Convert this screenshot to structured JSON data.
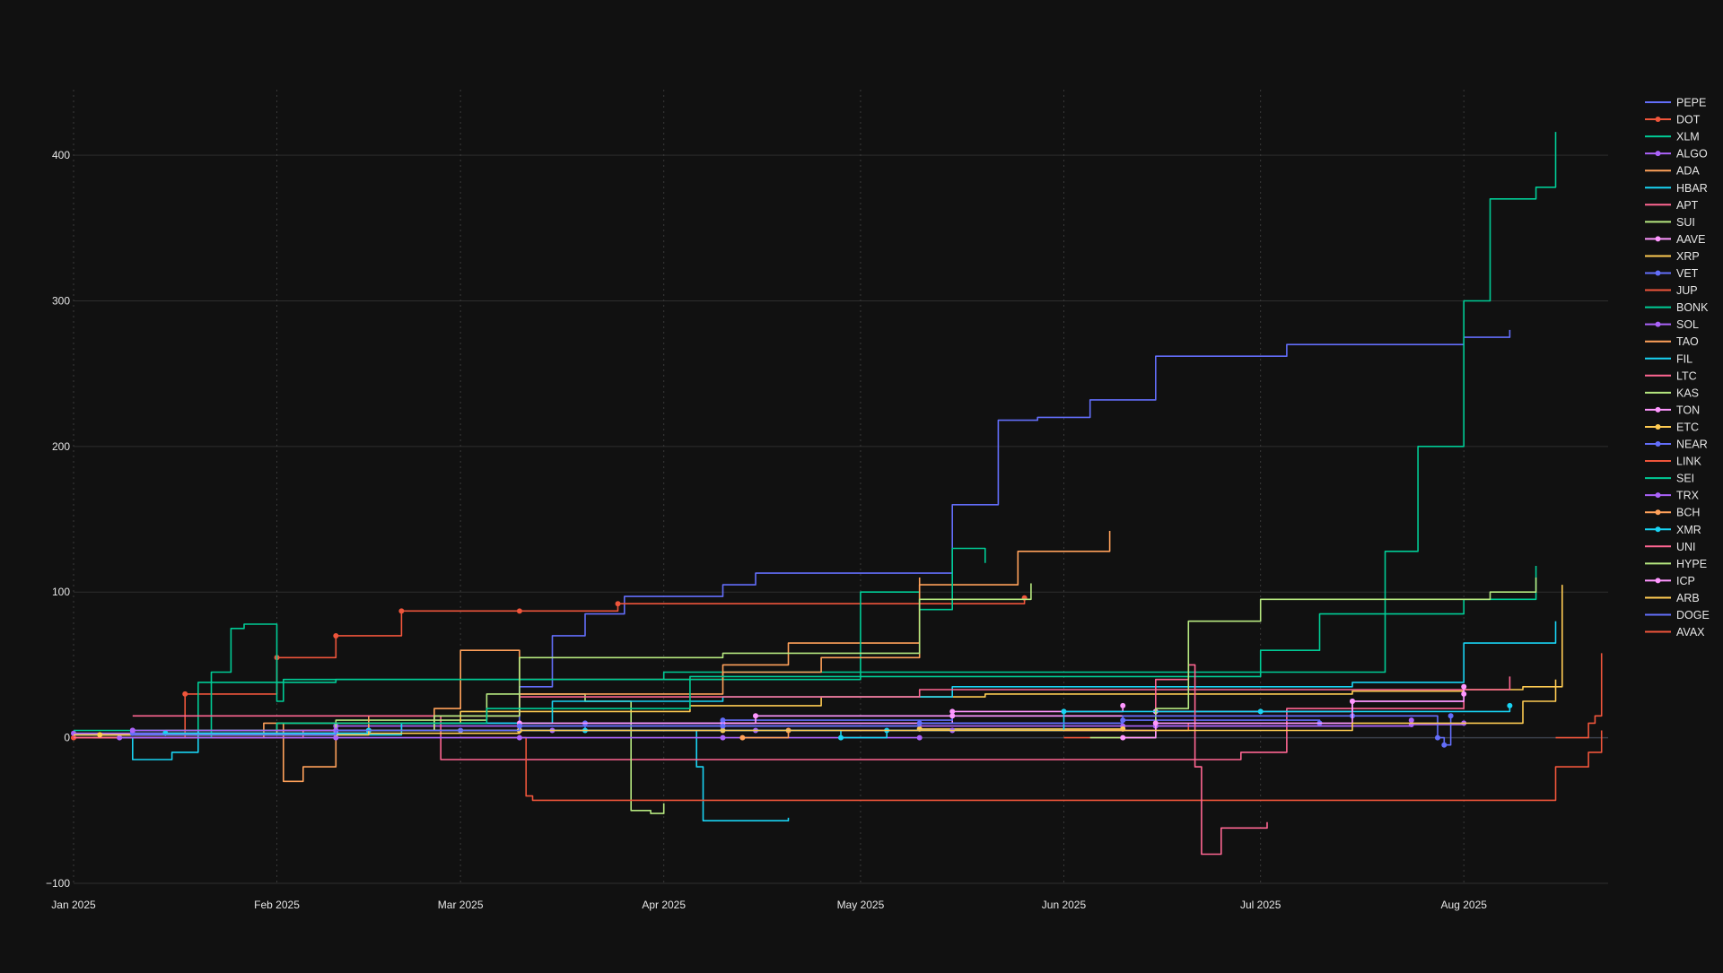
{
  "chart_data": {
    "type": "line",
    "title": "",
    "xlabel": "",
    "ylabel": "",
    "x_start": "2025-01-01",
    "x_end": "2025-08-23",
    "ylim": [
      -100,
      445
    ],
    "yticks": [
      -100,
      0,
      100,
      200,
      300,
      400
    ],
    "ytick_labels": [
      "−100",
      "0",
      "100",
      "200",
      "300",
      "400"
    ],
    "xticks": [
      "2025-01-01",
      "2025-02-01",
      "2025-03-01",
      "2025-04-01",
      "2025-05-01",
      "2025-06-01",
      "2025-07-01",
      "2025-08-01"
    ],
    "xtick_labels": [
      "Jan 2025",
      "Feb 2025",
      "Mar 2025",
      "Apr 2025",
      "May 2025",
      "Jun 2025",
      "Jul 2025",
      "Aug 2025"
    ],
    "grid": {
      "y": "solid",
      "x": "dotted"
    },
    "legend_position": "right",
    "background": "#111111",
    "series": [
      {
        "name": "PEPE",
        "color": "#636efa",
        "marker": false,
        "dates": [
          "2025-01-01",
          "2025-01-20",
          "2025-02-20",
          "2025-03-10",
          "2025-03-15",
          "2025-03-20",
          "2025-03-26",
          "2025-04-01",
          "2025-04-10",
          "2025-04-15",
          "2025-05-05",
          "2025-05-15",
          "2025-05-22",
          "2025-05-28",
          "2025-06-05",
          "2025-06-15",
          "2025-07-01",
          "2025-07-05",
          "2025-07-20",
          "2025-08-01",
          "2025-08-08"
        ],
        "values": [
          2,
          5,
          10,
          35,
          70,
          85,
          97,
          97,
          105,
          113,
          113,
          160,
          218,
          220,
          232,
          262,
          262,
          270,
          270,
          275,
          280
        ]
      },
      {
        "name": "DOT",
        "color": "#ef553b",
        "marker": true,
        "dates": [
          "2025-01-01",
          "2025-01-18",
          "2025-02-01",
          "2025-02-10",
          "2025-02-20",
          "2025-03-10",
          "2025-03-25",
          "2025-05-26"
        ],
        "values": [
          0,
          30,
          55,
          70,
          87,
          87,
          92,
          96
        ]
      },
      {
        "name": "XLM",
        "color": "#00cc96",
        "marker": false,
        "dates": [
          "2025-01-01",
          "2025-01-20",
          "2025-02-10",
          "2025-03-15",
          "2025-04-01",
          "2025-06-01",
          "2025-06-28",
          "2025-07-10",
          "2025-07-20",
          "2025-07-25",
          "2025-08-01",
          "2025-08-05",
          "2025-08-12",
          "2025-08-15"
        ],
        "values": [
          2,
          38,
          40,
          40,
          45,
          45,
          45,
          45,
          128,
          200,
          300,
          370,
          378,
          416
        ]
      },
      {
        "name": "ALGO",
        "color": "#ab63fa",
        "marker": true,
        "dates": [
          "2025-01-01",
          "2025-02-10",
          "2025-03-10",
          "2025-04-10",
          "2025-06-10",
          "2025-07-24",
          "2025-08-01"
        ],
        "values": [
          3,
          8,
          8,
          8,
          8,
          9,
          10
        ]
      },
      {
        "name": "ADA",
        "color": "#ffa15a",
        "marker": false,
        "dates": [
          "2025-01-04",
          "2025-01-30",
          "2025-02-02",
          "2025-02-05",
          "2025-02-10",
          "2025-02-25",
          "2025-03-01",
          "2025-03-10",
          "2025-04-10",
          "2025-04-20",
          "2025-05-10",
          "2025-05-25",
          "2025-06-08"
        ],
        "values": [
          0,
          10,
          -30,
          -20,
          5,
          20,
          60,
          40,
          50,
          65,
          105,
          128,
          142
        ]
      },
      {
        "name": "HBAR",
        "color": "#19d3f3",
        "marker": false,
        "dates": [
          "2025-01-08",
          "2025-01-10",
          "2025-01-16",
          "2025-01-20",
          "2025-03-01",
          "2025-04-05",
          "2025-04-06",
          "2025-04-07",
          "2025-04-20"
        ],
        "values": [
          0,
          -15,
          -10,
          5,
          5,
          5,
          -20,
          -57,
          -55
        ]
      },
      {
        "name": "APT",
        "color": "#ff6692",
        "marker": false,
        "dates": [
          "2025-01-01",
          "2025-02-05",
          "2025-02-25",
          "2025-02-26",
          "2025-03-15",
          "2025-06-25",
          "2025-06-28",
          "2025-07-05",
          "2025-08-01"
        ],
        "values": [
          0,
          5,
          15,
          -15,
          -15,
          -15,
          -10,
          20,
          25
        ]
      },
      {
        "name": "SUI",
        "color": "#b6e880",
        "marker": false,
        "dates": [
          "2025-01-10",
          "2025-02-10",
          "2025-03-05",
          "2025-03-20",
          "2025-03-25",
          "2025-03-27",
          "2025-03-30",
          "2025-04-01"
        ],
        "values": [
          3,
          12,
          30,
          25,
          25,
          -50,
          -52,
          -45
        ]
      },
      {
        "name": "AAVE",
        "color": "#ff97ff",
        "marker": true,
        "dates": [
          "2025-01-10",
          "2025-02-10",
          "2025-03-10",
          "2025-04-10",
          "2025-05-15",
          "2025-06-10"
        ],
        "values": [
          5,
          5,
          5,
          10,
          18,
          22
        ]
      },
      {
        "name": "XRP",
        "color": "#fecb52",
        "marker": false,
        "dates": [
          "2025-01-01",
          "2025-02-01",
          "2025-03-01",
          "2025-04-05",
          "2025-04-25",
          "2025-05-20",
          "2025-06-15",
          "2025-07-15",
          "2025-08-01",
          "2025-08-10",
          "2025-08-16"
        ],
        "values": [
          2,
          10,
          18,
          22,
          28,
          30,
          30,
          32,
          33,
          35,
          105
        ]
      },
      {
        "name": "VET",
        "color": "#636efa",
        "marker": true,
        "dates": [
          "2025-02-15",
          "2025-03-01",
          "2025-03-20",
          "2025-04-10",
          "2025-05-15",
          "2025-07-15",
          "2025-07-28",
          "2025-07-29",
          "2025-07-30"
        ],
        "values": [
          5,
          5,
          10,
          12,
          15,
          15,
          0,
          -5,
          15
        ]
      },
      {
        "name": "JUP",
        "color": "#ef553b",
        "marker": false,
        "dates": [
          "2025-03-01",
          "2025-03-10",
          "2025-03-11",
          "2025-03-12",
          "2025-05-01",
          "2025-06-01",
          "2025-07-01",
          "2025-08-12",
          "2025-08-15",
          "2025-08-20",
          "2025-08-22"
        ],
        "values": [
          0,
          0,
          -40,
          -43,
          -43,
          -43,
          -43,
          -43,
          -20,
          -10,
          5
        ]
      },
      {
        "name": "BONK",
        "color": "#00cc96",
        "marker": false,
        "dates": [
          "2025-01-20",
          "2025-01-22",
          "2025-01-25",
          "2025-01-27",
          "2025-01-30",
          "2025-02-01",
          "2025-02-02",
          "2025-03-01",
          "2025-04-15",
          "2025-05-01",
          "2025-05-10",
          "2025-05-15",
          "2025-05-20"
        ],
        "values": [
          0,
          45,
          75,
          78,
          78,
          25,
          40,
          40,
          40,
          100,
          88,
          130,
          120
        ]
      },
      {
        "name": "SOL",
        "color": "#ab63fa",
        "marker": true,
        "dates": [
          "2025-01-08",
          "2025-02-10",
          "2025-03-10",
          "2025-04-10",
          "2025-05-10"
        ],
        "values": [
          0,
          0,
          0,
          0,
          0
        ]
      },
      {
        "name": "TAO",
        "color": "#ffa15a",
        "marker": false,
        "dates": [
          "2025-01-15",
          "2025-02-15",
          "2025-03-10",
          "2025-04-10",
          "2025-04-25",
          "2025-05-10"
        ],
        "values": [
          5,
          15,
          30,
          45,
          55,
          110
        ]
      },
      {
        "name": "FIL",
        "color": "#19d3f3",
        "marker": false,
        "dates": [
          "2025-01-10",
          "2025-02-20",
          "2025-03-15",
          "2025-04-10",
          "2025-05-15",
          "2025-06-20",
          "2025-07-15",
          "2025-08-01",
          "2025-08-15"
        ],
        "values": [
          2,
          10,
          25,
          28,
          35,
          35,
          38,
          65,
          80
        ]
      },
      {
        "name": "LTC",
        "color": "#ff6692",
        "marker": false,
        "dates": [
          "2025-01-10",
          "2025-02-15",
          "2025-03-10",
          "2025-04-10",
          "2025-05-10",
          "2025-06-10",
          "2025-07-10",
          "2025-08-01",
          "2025-08-08"
        ],
        "values": [
          15,
          15,
          28,
          28,
          33,
          33,
          33,
          33,
          42
        ]
      },
      {
        "name": "KAS",
        "color": "#b6e880",
        "marker": false,
        "dates": [
          "2025-01-05",
          "2025-02-10",
          "2025-02-25",
          "2025-03-10",
          "2025-04-10",
          "2025-05-10",
          "2025-05-27"
        ],
        "values": [
          2,
          5,
          15,
          55,
          58,
          95,
          106
        ]
      },
      {
        "name": "TON",
        "color": "#ff97ff",
        "marker": true,
        "dates": [
          "2025-01-15",
          "2025-02-15",
          "2025-03-10",
          "2025-04-15",
          "2025-05-15",
          "2025-06-15",
          "2025-07-15",
          "2025-08-01"
        ],
        "values": [
          3,
          5,
          10,
          15,
          15,
          18,
          25,
          35
        ]
      },
      {
        "name": "ETC",
        "color": "#fecb52",
        "marker": true,
        "dates": [
          "2025-01-05",
          "2025-02-10",
          "2025-03-10",
          "2025-04-10",
          "2025-05-10",
          "2025-06-10"
        ],
        "values": [
          2,
          3,
          5,
          5,
          6,
          6
        ]
      },
      {
        "name": "NEAR",
        "color": "#636efa",
        "marker": true,
        "dates": [
          "2025-01-10",
          "2025-02-10",
          "2025-03-10",
          "2025-04-10",
          "2025-05-10",
          "2025-06-10",
          "2025-07-10"
        ],
        "values": [
          3,
          5,
          8,
          8,
          10,
          12,
          10
        ]
      },
      {
        "name": "LINK",
        "color": "#ef553b",
        "marker": false,
        "dates": [
          "2025-06-01",
          "2025-06-15",
          "2025-06-20"
        ],
        "values": [
          0,
          5,
          10
        ]
      },
      {
        "name": "SEI",
        "color": "#00cc96",
        "marker": false,
        "dates": [
          "2025-01-01",
          "2025-02-01",
          "2025-03-05",
          "2025-04-05",
          "2025-06-10",
          "2025-06-25",
          "2025-07-01",
          "2025-07-10",
          "2025-08-01",
          "2025-08-12"
        ],
        "values": [
          5,
          10,
          20,
          42,
          42,
          42,
          60,
          85,
          95,
          118
        ]
      },
      {
        "name": "TRX",
        "color": "#ab63fa",
        "marker": true,
        "dates": [
          "2025-01-10",
          "2025-02-10",
          "2025-03-15",
          "2025-04-15",
          "2025-05-15",
          "2025-06-15",
          "2025-07-24"
        ],
        "values": [
          5,
          5,
          5,
          5,
          5,
          8,
          12
        ]
      },
      {
        "name": "BCH",
        "color": "#ffa15a",
        "marker": true,
        "dates": [
          "2025-04-13",
          "2025-04-20"
        ],
        "values": [
          0,
          5
        ]
      },
      {
        "name": "XMR",
        "color": "#19d3f3",
        "marker": true,
        "dates": [
          "2025-01-15",
          "2025-02-15",
          "2025-03-20",
          "2025-04-28",
          "2025-05-05",
          "2025-06-01",
          "2025-07-01",
          "2025-08-08"
        ],
        "values": [
          3,
          5,
          5,
          0,
          5,
          18,
          18,
          22
        ]
      },
      {
        "name": "UNI",
        "color": "#ff6692",
        "marker": false,
        "dates": [
          "2025-06-01",
          "2025-06-15",
          "2025-06-20",
          "2025-06-21",
          "2025-06-22",
          "2025-06-25",
          "2025-07-02"
        ],
        "values": [
          5,
          40,
          50,
          -20,
          -80,
          -62,
          -58
        ]
      },
      {
        "name": "HYPE",
        "color": "#b6e880",
        "marker": false,
        "dates": [
          "2025-06-05",
          "2025-06-15",
          "2025-06-20",
          "2025-07-01",
          "2025-08-01",
          "2025-08-05",
          "2025-08-12"
        ],
        "values": [
          0,
          20,
          80,
          95,
          95,
          100,
          110
        ]
      },
      {
        "name": "ICP",
        "color": "#ff97ff",
        "marker": true,
        "dates": [
          "2025-06-10",
          "2025-06-15",
          "2025-07-15",
          "2025-08-01"
        ],
        "values": [
          0,
          10,
          25,
          30
        ]
      },
      {
        "name": "ARB",
        "color": "#fecb52",
        "marker": false,
        "dates": [
          "2025-01-15",
          "2025-02-15",
          "2025-03-15",
          "2025-04-15",
          "2025-05-15",
          "2025-06-15",
          "2025-07-15",
          "2025-08-10",
          "2025-08-15"
        ],
        "values": [
          2,
          5,
          5,
          5,
          5,
          5,
          10,
          25,
          40
        ]
      },
      {
        "name": "DOGE",
        "color": "#636efa",
        "marker": false,
        "dates": [
          "2025-01-10",
          "2025-02-10",
          "2025-03-10",
          "2025-04-10",
          "2025-05-10",
          "2025-06-10",
          "2025-07-10"
        ],
        "values": [
          2,
          5,
          8,
          8,
          10,
          15,
          15
        ]
      },
      {
        "name": "AVAX",
        "color": "#ef553b",
        "marker": false,
        "dates": [
          "2025-08-15",
          "2025-08-19",
          "2025-08-20",
          "2025-08-21",
          "2025-08-22"
        ],
        "values": [
          0,
          0,
          10,
          15,
          58
        ]
      }
    ]
  }
}
